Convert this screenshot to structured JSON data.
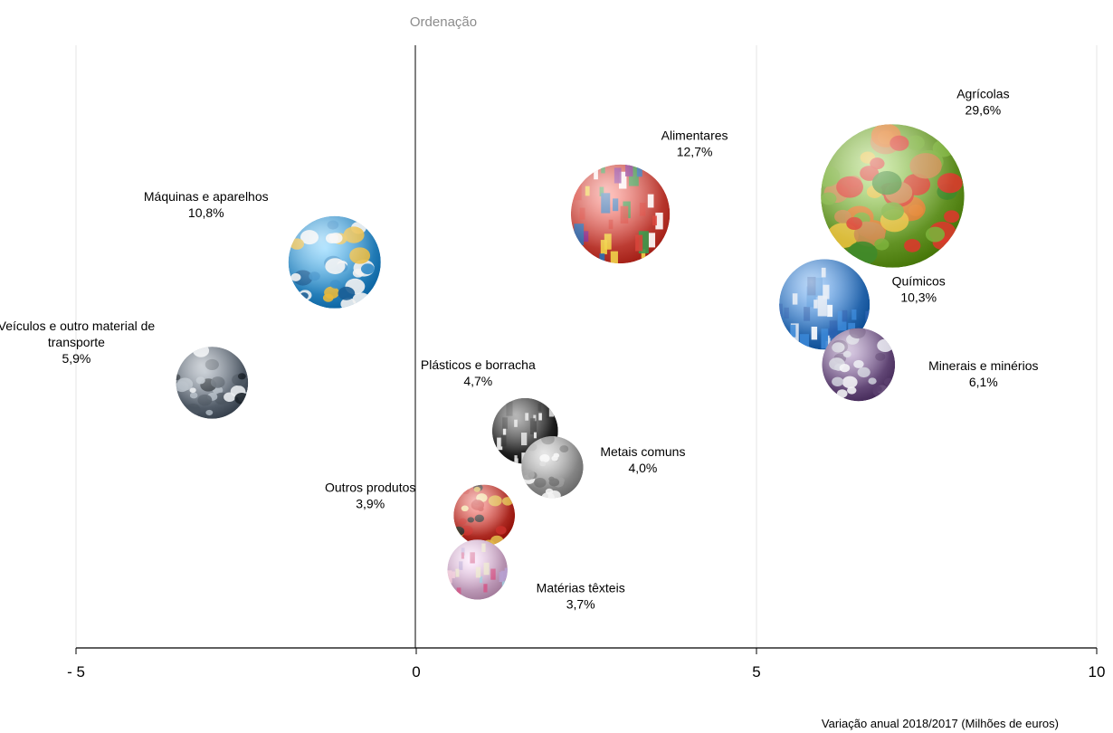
{
  "chart_data": {
    "type": "scatter",
    "title": "Ordenação",
    "xlabel": "Variação anual 2018/2017 (Milhões de euros)",
    "ylabel": "",
    "xlim": [
      -5,
      10
    ],
    "xticks": [
      {
        "value": -5,
        "label": "- 5"
      },
      {
        "value": 0,
        "label": "0"
      },
      {
        "value": 5,
        "label": "5"
      },
      {
        "value": 10,
        "label": "10"
      }
    ],
    "grid": true,
    "points": [
      {
        "name": "Agrícolas",
        "share": "29,6%",
        "x": 7.0,
        "y": 0.75,
        "size": 29.6,
        "color": "#6a9a2c",
        "photo": "vegetables"
      },
      {
        "name": "Alimentares",
        "share": "12,7%",
        "x": 3.0,
        "y": 0.72,
        "size": 12.7,
        "color": "#c8433a",
        "photo": "groceries"
      },
      {
        "name": "Químicos",
        "share": "10,3%",
        "x": 6.0,
        "y": 0.57,
        "size": 10.3,
        "color": "#2f6fb6",
        "photo": "canisters"
      },
      {
        "name": "Minerais e minérios",
        "share": "6,1%",
        "x": 6.5,
        "y": 0.47,
        "size": 6.1,
        "color": "#6a4f7e",
        "photo": "crystal"
      },
      {
        "name": "Máquinas e aparelhos",
        "share": "10,8%",
        "x": -1.2,
        "y": 0.64,
        "size": 10.8,
        "color": "#2f88c6",
        "photo": "machine"
      },
      {
        "name": "Veículos e outro material de transporte",
        "share": "5,9%",
        "x": -3.0,
        "y": 0.44,
        "size": 5.9,
        "color": "#5a6470",
        "photo": "vans"
      },
      {
        "name": "Plásticos e borracha",
        "share": "4,7%",
        "x": 1.6,
        "y": 0.36,
        "size": 4.7,
        "color": "#2a2a2a",
        "photo": "bottles"
      },
      {
        "name": "Metais comuns",
        "share": "4,0%",
        "x": 2.0,
        "y": 0.3,
        "size": 4.0,
        "color": "#8e8e8e",
        "photo": "metal"
      },
      {
        "name": "Outros produtos",
        "share": "3,9%",
        "x": 1.0,
        "y": 0.22,
        "size": 3.9,
        "color": "#b4322a",
        "photo": "boxes"
      },
      {
        "name": "Matérias têxteis",
        "share": "3,7%",
        "x": 0.9,
        "y": 0.13,
        "size": 3.7,
        "color": "#c8a0c0",
        "photo": "textiles"
      }
    ]
  }
}
